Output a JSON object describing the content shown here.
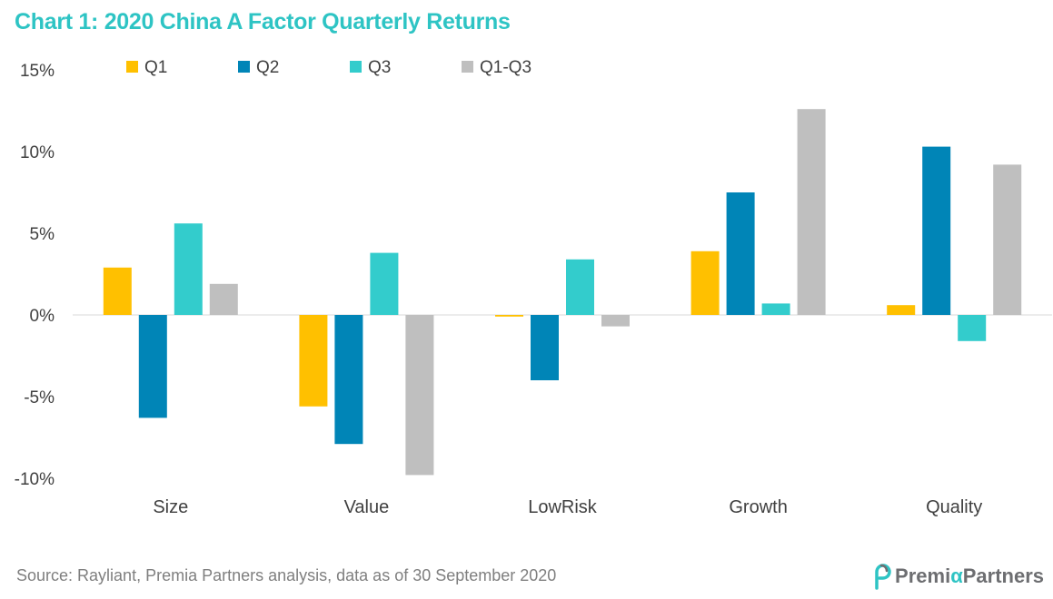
{
  "title": "Chart 1: 2020 China A Factor Quarterly Returns",
  "source": "Source: Rayliant, Premia Partners analysis, data as of 30 September 2020",
  "logo": {
    "part1": "Premi",
    "alpha": "α",
    "part2": "Partners"
  },
  "colors": {
    "accent": "#2ec4c4",
    "Q1": "#ffc000",
    "Q2": "#0085b7",
    "Q3": "#33cccc",
    "Q1-Q3": "#bfbfbf"
  },
  "chart_data": {
    "type": "bar",
    "categories": [
      "Size",
      "Value",
      "LowRisk",
      "Growth",
      "Quality"
    ],
    "series": [
      {
        "name": "Q1",
        "values": [
          2.9,
          -5.6,
          -0.1,
          3.9,
          0.6
        ]
      },
      {
        "name": "Q2",
        "values": [
          -6.3,
          -7.9,
          -4.0,
          7.5,
          10.3
        ]
      },
      {
        "name": "Q3",
        "values": [
          5.6,
          3.8,
          3.4,
          0.7,
          -1.6
        ]
      },
      {
        "name": "Q1-Q3",
        "values": [
          1.9,
          -9.8,
          -0.7,
          12.6,
          9.2
        ]
      }
    ],
    "yticks": [
      "15%",
      "10%",
      "5%",
      "0%",
      "-5%",
      "-10%"
    ],
    "ytick_values": [
      15,
      10,
      5,
      0,
      -5,
      -10
    ],
    "ylim": [
      -10,
      15
    ],
    "legend": "top",
    "grid": false
  }
}
